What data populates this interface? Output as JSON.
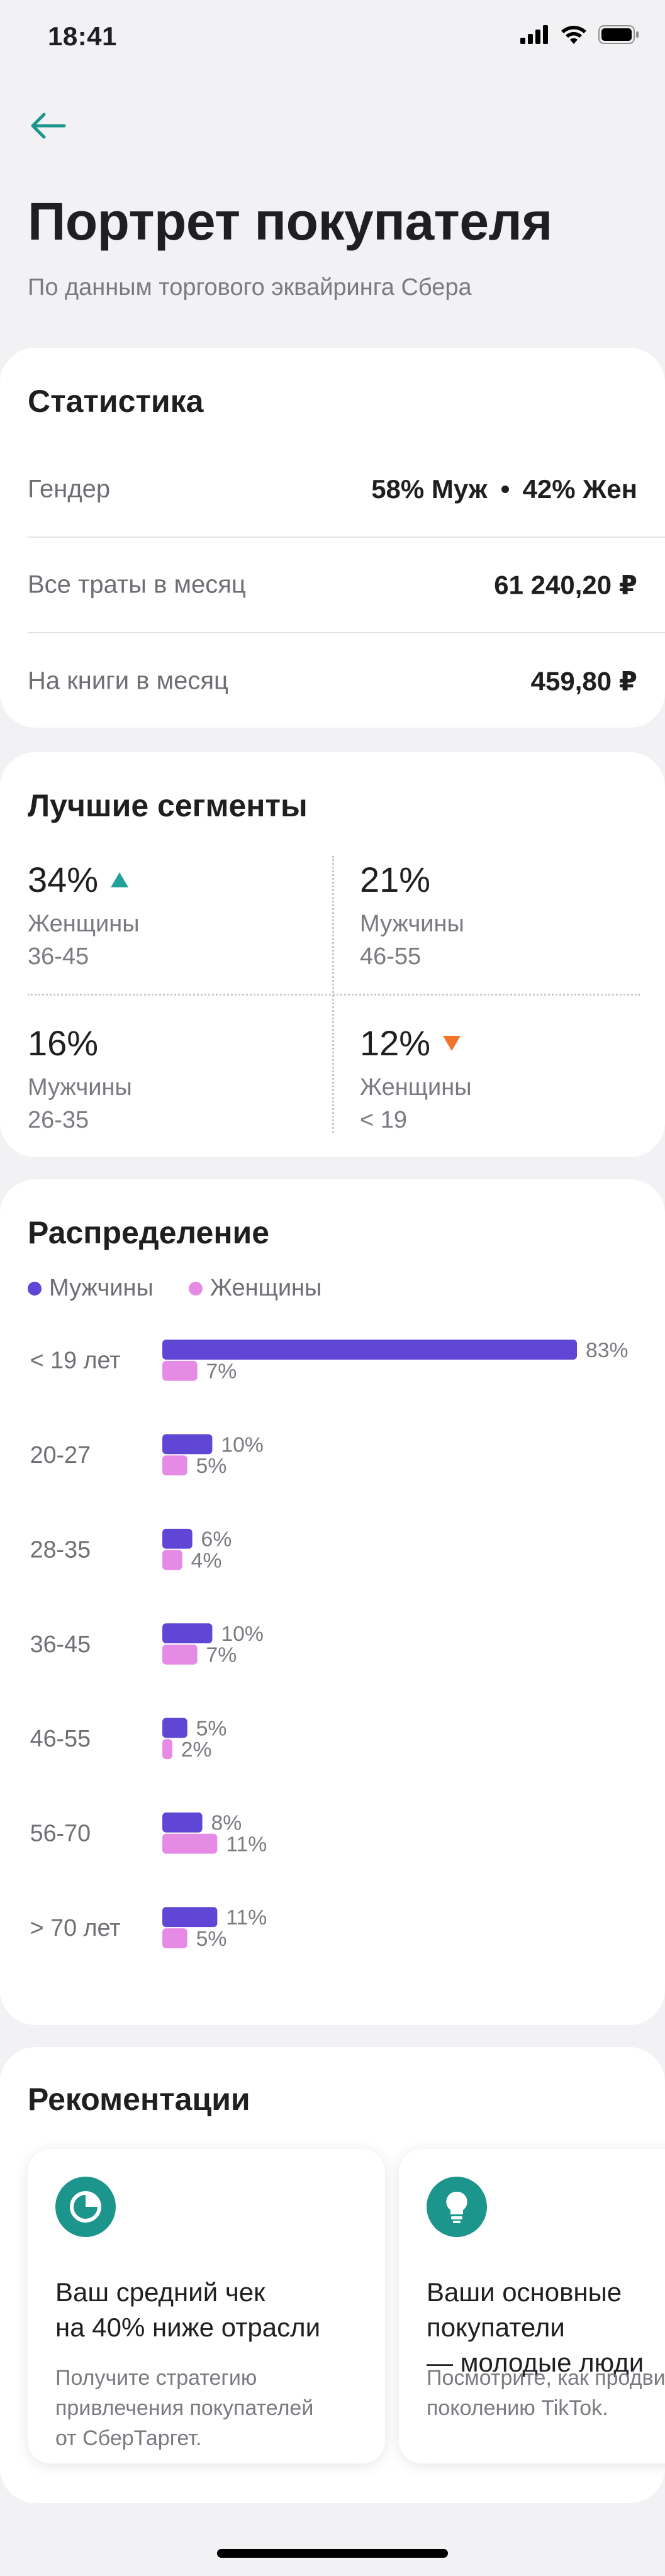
{
  "status_bar": {
    "time": "18:41"
  },
  "header": {
    "title": "Портрет покупателя",
    "subtitle": "По данным торгового эквайринга Сбера"
  },
  "stats": {
    "title": "Статистика",
    "gender": {
      "label": "Гендер",
      "male": "58% Муж",
      "female": "42% Жен"
    },
    "spend_month": {
      "label": "Все траты в месяц",
      "value": "61 240,20 ₽"
    },
    "books_month": {
      "label": "На книги в месяц",
      "value": "459,80 ₽"
    }
  },
  "segments": {
    "title": "Лучшие сегменты",
    "items": [
      {
        "pct": "34%",
        "who": "Женщины",
        "age": "36-45",
        "trend": "up"
      },
      {
        "pct": "21%",
        "who": "Мужчины",
        "age": "46-55",
        "trend": ""
      },
      {
        "pct": "16%",
        "who": "Мужчины",
        "age": "26-35",
        "trend": ""
      },
      {
        "pct": "12%",
        "who": "Женщины",
        "age": "< 19",
        "trend": "down"
      }
    ]
  },
  "distribution": {
    "title": "Распределение",
    "legend": {
      "male": "Мужчины",
      "female": "Женщины"
    },
    "colors": {
      "male": "#5F46D4",
      "female": "#E58BE6",
      "up": "#21A19A",
      "down": "#F0742A"
    }
  },
  "chart_data": {
    "type": "bar",
    "orientation": "horizontal",
    "categories": [
      "< 19 лет",
      "20-27",
      "28-35",
      "36-45",
      "46-55",
      "56-70",
      "> 70 лет"
    ],
    "series": [
      {
        "name": "Мужчины",
        "values": [
          83,
          10,
          6,
          10,
          5,
          8,
          11
        ],
        "labels": [
          "83%",
          "10%",
          "6%",
          "10%",
          "5%",
          "8%",
          "11%"
        ]
      },
      {
        "name": "Женщины",
        "values": [
          7,
          5,
          4,
          7,
          2,
          11,
          5
        ],
        "labels": [
          "7%",
          "5%",
          "4%",
          "7%",
          "2%",
          "11%",
          "5%"
        ]
      }
    ],
    "legend_position": "top-left",
    "grid": false
  },
  "recommendations": {
    "title": "Рекоментации",
    "cards": [
      {
        "icon": "pie-chart-icon",
        "heading": "Ваш средний чек\nна 40% ниже отрасли",
        "text": "Получите стратегию\nпривлечения покупателей\nот СберТаргет."
      },
      {
        "icon": "lightbulb-icon",
        "heading": "Ваши основные\nпокупатели\n— молодые люди",
        "text": "Посмотрите, как продвигаться\nпоколению TikTok."
      }
    ]
  }
}
